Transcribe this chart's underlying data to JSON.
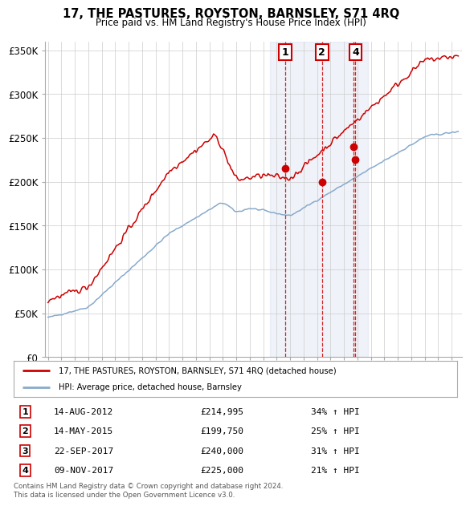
{
  "title": "17, THE PASTURES, ROYSTON, BARNSLEY, S71 4RQ",
  "subtitle": "Price paid vs. HM Land Registry's House Price Index (HPI)",
  "ylim": [
    0,
    360000
  ],
  "yticks": [
    0,
    50000,
    100000,
    150000,
    200000,
    250000,
    300000,
    350000
  ],
  "ytick_labels": [
    "£0",
    "£50K",
    "£100K",
    "£150K",
    "£200K",
    "£250K",
    "£300K",
    "£350K"
  ],
  "xmin": 1994.8,
  "xmax": 2025.8,
  "legend_entries": [
    "17, THE PASTURES, ROYSTON, BARNSLEY, S71 4RQ (detached house)",
    "HPI: Average price, detached house, Barnsley"
  ],
  "line_colors": [
    "#cc0000",
    "#88aacc"
  ],
  "transactions": [
    {
      "num": 1,
      "date": "14-AUG-2012",
      "price": 214995,
      "pct": "34%",
      "x": 2012.617
    },
    {
      "num": 2,
      "date": "14-MAY-2015",
      "price": 199750,
      "pct": "25%",
      "x": 2015.367
    },
    {
      "num": 3,
      "date": "22-SEP-2017",
      "price": 240000,
      "pct": "31%",
      "x": 2017.722
    },
    {
      "num": 4,
      "date": "09-NOV-2017",
      "price": 225000,
      "pct": "21%",
      "x": 2017.858
    }
  ],
  "shade_x_min": 2011.5,
  "shade_x_max": 2018.8,
  "footnote": "Contains HM Land Registry data © Crown copyright and database right 2024.\nThis data is licensed under the Open Government Licence v3.0.",
  "background_color": "#ffffff",
  "grid_color": "#cccccc",
  "chart_shown_markers": [
    1,
    2,
    4
  ]
}
